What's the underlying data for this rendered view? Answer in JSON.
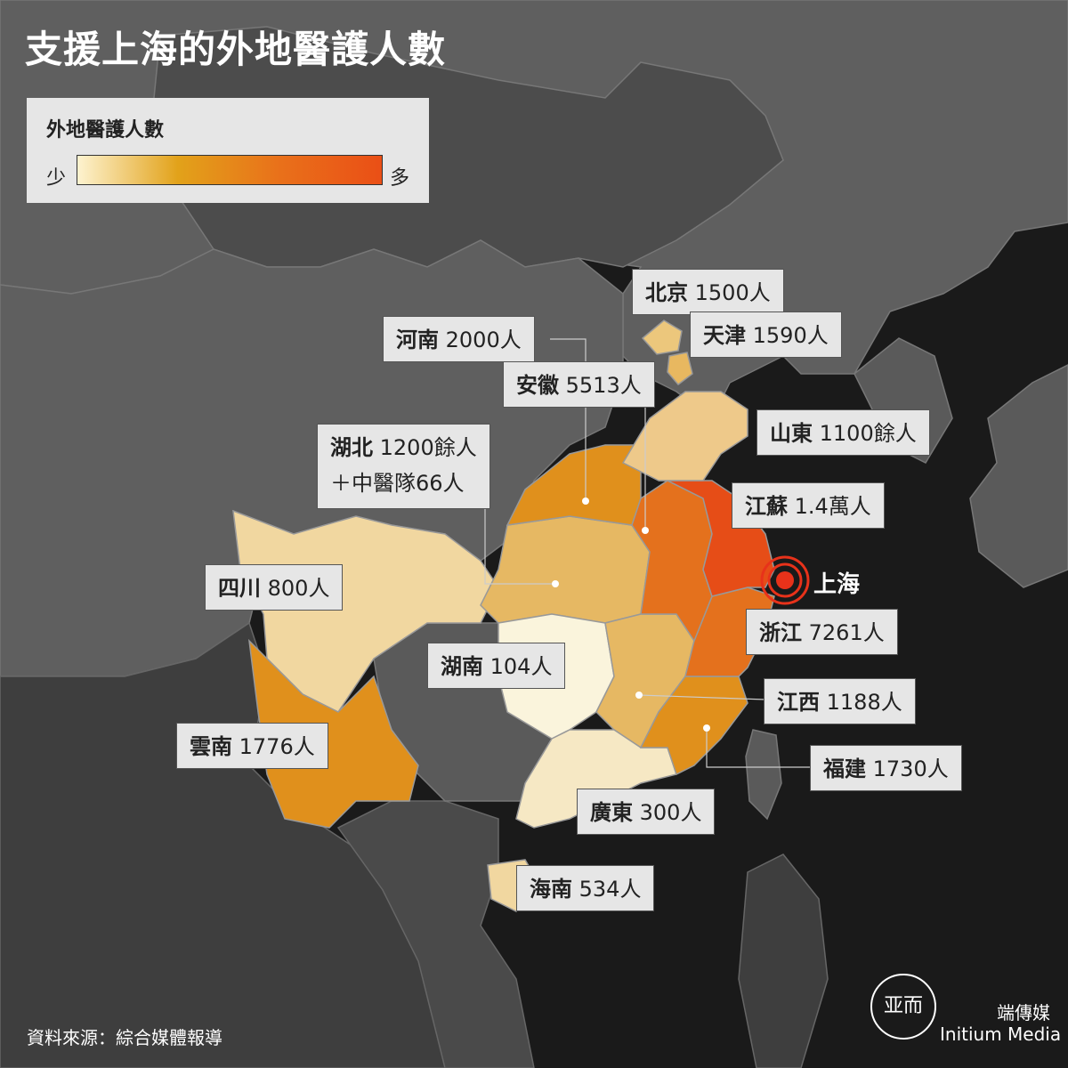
{
  "title": "支援上海的外地醫護人數",
  "legend": {
    "title": "外地醫護人數",
    "min_label": "少",
    "max_label": "多"
  },
  "colors": {
    "background": "#1a1a1a",
    "land_other": "#5f5f5f",
    "land_dark": "#464646",
    "border_line": "#777777",
    "scale_lightest": "#fdf3d0",
    "scale_light": "#ecc77c",
    "scale_mid": "#e0901c",
    "scale_strong": "#e4711d",
    "scale_max": "#e64d17",
    "shanghai_marker": "#e8321a"
  },
  "regions": [
    {
      "id": "beijing",
      "name": "北京",
      "count": "1500人",
      "color": "#ecc77c"
    },
    {
      "id": "tianjin",
      "name": "天津",
      "count": "1590人",
      "color": "#e8b860"
    },
    {
      "id": "henan",
      "name": "河南",
      "count": "2000人",
      "color": "#e0901c"
    },
    {
      "id": "anhui",
      "name": "安徽",
      "count": "5513人",
      "color": "#e4711d"
    },
    {
      "id": "shandong",
      "name": "山東",
      "count": "1100餘人",
      "color": "#eec98a"
    },
    {
      "id": "hubei",
      "name": "湖北",
      "count": "1200餘人",
      "extra": "＋中醫隊66人",
      "color": "#e6b863"
    },
    {
      "id": "jiangsu",
      "name": "江蘇",
      "count": "1.4萬人",
      "color": "#e64d17"
    },
    {
      "id": "sichuan",
      "name": "四川",
      "count": "800人",
      "color": "#f1d7a0"
    },
    {
      "id": "zhejiang",
      "name": "浙江",
      "count": "7261人",
      "color": "#e4711d"
    },
    {
      "id": "hunan",
      "name": "湖南",
      "count": "104人",
      "color": "#faf4dc"
    },
    {
      "id": "jiangxi",
      "name": "江西",
      "count": "1188人",
      "color": "#e6b863"
    },
    {
      "id": "yunnan",
      "name": "雲南",
      "count": "1776人",
      "color": "#e0901c"
    },
    {
      "id": "fujian",
      "name": "福建",
      "count": "1730人",
      "color": "#e0901c"
    },
    {
      "id": "guangdong",
      "name": "廣東",
      "count": "300人",
      "color": "#f6e8c4"
    },
    {
      "id": "hainan",
      "name": "海南",
      "count": "534人",
      "color": "#f1d7a0"
    }
  ],
  "shanghai_label": "上海",
  "source": "資料來源：綜合媒體報導",
  "brand": {
    "name_cn": "端傳媒",
    "name_en": "Initium Media",
    "logo_text": "亚而"
  }
}
